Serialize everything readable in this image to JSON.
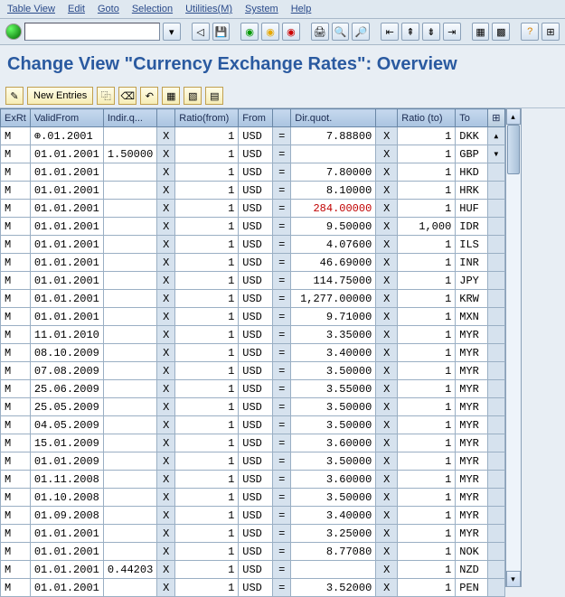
{
  "menu": [
    "Table View",
    "Edit",
    "Goto",
    "Selection",
    "Utilities(M)",
    "System",
    "Help"
  ],
  "title": "Change View \"Currency Exchange Rates\": Overview",
  "subToolbar": {
    "newEntries": "New Entries"
  },
  "columns": {
    "exrt": "ExRt",
    "validFrom": "ValidFrom",
    "indir": "Indir.q...",
    "ratioFrom": "Ratio(from)",
    "from": "From",
    "dirQuot": "Dir.quot.",
    "ratioTo": "Ratio (to)",
    "to": "To"
  },
  "table_style": {
    "header_bg": "#aac4e0",
    "header_border": "#6a87a6",
    "cell_bg": "#ffffff",
    "gray_cell_bg": "#d6e2ee",
    "border": "#9aafc4",
    "highlight_color": "#c00000",
    "font": "Courier New",
    "font_size": 12
  },
  "rows": [
    {
      "ex": "M",
      "vf": "⊕.01.2001",
      "iq": "",
      "rf": "1",
      "from": "USD",
      "dq": "7.88800",
      "rt": "1",
      "to": "DKK"
    },
    {
      "ex": "M",
      "vf": "01.01.2001",
      "iq": "1.50000",
      "rf": "1",
      "from": "USD",
      "dq": "",
      "rt": "1",
      "to": "GBP"
    },
    {
      "ex": "M",
      "vf": "01.01.2001",
      "iq": "",
      "rf": "1",
      "from": "USD",
      "dq": "7.80000",
      "rt": "1",
      "to": "HKD"
    },
    {
      "ex": "M",
      "vf": "01.01.2001",
      "iq": "",
      "rf": "1",
      "from": "USD",
      "dq": "8.10000",
      "rt": "1",
      "to": "HRK"
    },
    {
      "ex": "M",
      "vf": "01.01.2001",
      "iq": "",
      "rf": "1",
      "from": "USD",
      "dq": "284.00000",
      "rt": "1",
      "to": "HUF",
      "red": true
    },
    {
      "ex": "M",
      "vf": "01.01.2001",
      "iq": "",
      "rf": "1",
      "from": "USD",
      "dq": "9.50000",
      "rt": "1,000",
      "to": "IDR"
    },
    {
      "ex": "M",
      "vf": "01.01.2001",
      "iq": "",
      "rf": "1",
      "from": "USD",
      "dq": "4.07600",
      "rt": "1",
      "to": "ILS"
    },
    {
      "ex": "M",
      "vf": "01.01.2001",
      "iq": "",
      "rf": "1",
      "from": "USD",
      "dq": "46.69000",
      "rt": "1",
      "to": "INR"
    },
    {
      "ex": "M",
      "vf": "01.01.2001",
      "iq": "",
      "rf": "1",
      "from": "USD",
      "dq": "114.75000",
      "rt": "1",
      "to": "JPY"
    },
    {
      "ex": "M",
      "vf": "01.01.2001",
      "iq": "",
      "rf": "1",
      "from": "USD",
      "dq": "1,277.00000",
      "rt": "1",
      "to": "KRW"
    },
    {
      "ex": "M",
      "vf": "01.01.2001",
      "iq": "",
      "rf": "1",
      "from": "USD",
      "dq": "9.71000",
      "rt": "1",
      "to": "MXN"
    },
    {
      "ex": "M",
      "vf": "11.01.2010",
      "iq": "",
      "rf": "1",
      "from": "USD",
      "dq": "3.35000",
      "rt": "1",
      "to": "MYR"
    },
    {
      "ex": "M",
      "vf": "08.10.2009",
      "iq": "",
      "rf": "1",
      "from": "USD",
      "dq": "3.40000",
      "rt": "1",
      "to": "MYR"
    },
    {
      "ex": "M",
      "vf": "07.08.2009",
      "iq": "",
      "rf": "1",
      "from": "USD",
      "dq": "3.50000",
      "rt": "1",
      "to": "MYR"
    },
    {
      "ex": "M",
      "vf": "25.06.2009",
      "iq": "",
      "rf": "1",
      "from": "USD",
      "dq": "3.55000",
      "rt": "1",
      "to": "MYR"
    },
    {
      "ex": "M",
      "vf": "25.05.2009",
      "iq": "",
      "rf": "1",
      "from": "USD",
      "dq": "3.50000",
      "rt": "1",
      "to": "MYR"
    },
    {
      "ex": "M",
      "vf": "04.05.2009",
      "iq": "",
      "rf": "1",
      "from": "USD",
      "dq": "3.50000",
      "rt": "1",
      "to": "MYR"
    },
    {
      "ex": "M",
      "vf": "15.01.2009",
      "iq": "",
      "rf": "1",
      "from": "USD",
      "dq": "3.60000",
      "rt": "1",
      "to": "MYR"
    },
    {
      "ex": "M",
      "vf": "01.01.2009",
      "iq": "",
      "rf": "1",
      "from": "USD",
      "dq": "3.50000",
      "rt": "1",
      "to": "MYR"
    },
    {
      "ex": "M",
      "vf": "01.11.2008",
      "iq": "",
      "rf": "1",
      "from": "USD",
      "dq": "3.60000",
      "rt": "1",
      "to": "MYR"
    },
    {
      "ex": "M",
      "vf": "01.10.2008",
      "iq": "",
      "rf": "1",
      "from": "USD",
      "dq": "3.50000",
      "rt": "1",
      "to": "MYR"
    },
    {
      "ex": "M",
      "vf": "01.09.2008",
      "iq": "",
      "rf": "1",
      "from": "USD",
      "dq": "3.40000",
      "rt": "1",
      "to": "MYR"
    },
    {
      "ex": "M",
      "vf": "01.01.2001",
      "iq": "",
      "rf": "1",
      "from": "USD",
      "dq": "3.25000",
      "rt": "1",
      "to": "MYR"
    },
    {
      "ex": "M",
      "vf": "01.01.2001",
      "iq": "",
      "rf": "1",
      "from": "USD",
      "dq": "8.77080",
      "rt": "1",
      "to": "NOK"
    },
    {
      "ex": "M",
      "vf": "01.01.2001",
      "iq": "0.44203",
      "rf": "1",
      "from": "USD",
      "dq": "",
      "rt": "1",
      "to": "NZD"
    },
    {
      "ex": "M",
      "vf": "01.01.2001",
      "iq": "",
      "rf": "1",
      "from": "USD",
      "dq": "3.52000",
      "rt": "1",
      "to": "PEN"
    }
  ]
}
